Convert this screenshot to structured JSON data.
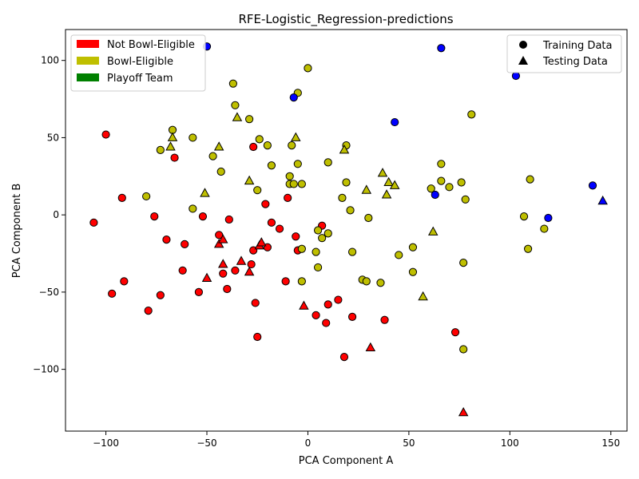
{
  "colors": {
    "not_bowl": "#ff0000",
    "bowl": "#bfbf00",
    "playoff": "#008000",
    "blue": "#0000ff",
    "edge": "#000000"
  },
  "chart_data": {
    "type": "scatter",
    "title": "RFE-Logistic_Regression-predictions",
    "xlabel": "PCA Component A",
    "ylabel": "PCA Component B",
    "xlim": [
      -120,
      158
    ],
    "ylim": [
      -140,
      120
    ],
    "xticks": [
      -100,
      -50,
      0,
      50,
      100,
      150
    ],
    "yticks": [
      -100,
      -50,
      0,
      50,
      100
    ],
    "grid": false,
    "class_legend": {
      "placement": "top-left",
      "entries": [
        {
          "label": "Not Bowl-Eligible",
          "color": "#ff0000"
        },
        {
          "label": "Bowl-Eligible",
          "color": "#bfbf00"
        },
        {
          "label": "Playoff Team",
          "color": "#008000"
        }
      ]
    },
    "marker_legend": {
      "placement": "top-right",
      "entries": [
        {
          "label": "Training Data",
          "marker": "circle"
        },
        {
          "label": "Testing Data",
          "marker": "triangle"
        }
      ]
    },
    "points": [
      {
        "x": -106,
        "y": -5,
        "c": "red",
        "m": "o"
      },
      {
        "x": -100,
        "y": 52,
        "c": "red",
        "m": "o"
      },
      {
        "x": -97,
        "y": -51,
        "c": "red",
        "m": "o"
      },
      {
        "x": -92,
        "y": 11,
        "c": "red",
        "m": "o"
      },
      {
        "x": -91,
        "y": -43,
        "c": "red",
        "m": "o"
      },
      {
        "x": -79,
        "y": -62,
        "c": "red",
        "m": "o"
      },
      {
        "x": -76,
        "y": -1,
        "c": "red",
        "m": "o"
      },
      {
        "x": -73,
        "y": -52,
        "c": "red",
        "m": "o"
      },
      {
        "x": -70,
        "y": -16,
        "c": "red",
        "m": "o"
      },
      {
        "x": -66,
        "y": 37,
        "c": "red",
        "m": "o"
      },
      {
        "x": -62,
        "y": -36,
        "c": "red",
        "m": "o"
      },
      {
        "x": -61,
        "y": -19,
        "c": "red",
        "m": "o"
      },
      {
        "x": -54,
        "y": -50,
        "c": "red",
        "m": "o"
      },
      {
        "x": -52,
        "y": -1,
        "c": "red",
        "m": "o"
      },
      {
        "x": -44,
        "y": -13,
        "c": "red",
        "m": "o"
      },
      {
        "x": -42,
        "y": -38,
        "c": "red",
        "m": "o"
      },
      {
        "x": -40,
        "y": -48,
        "c": "red",
        "m": "o"
      },
      {
        "x": -39,
        "y": -3,
        "c": "red",
        "m": "o"
      },
      {
        "x": -36,
        "y": -36,
        "c": "red",
        "m": "o"
      },
      {
        "x": -28,
        "y": -32,
        "c": "red",
        "m": "o"
      },
      {
        "x": -27,
        "y": -23,
        "c": "red",
        "m": "o"
      },
      {
        "x": -27,
        "y": 44,
        "c": "red",
        "m": "o"
      },
      {
        "x": -26,
        "y": -57,
        "c": "red",
        "m": "o"
      },
      {
        "x": -25,
        "y": -79,
        "c": "red",
        "m": "o"
      },
      {
        "x": -21,
        "y": 7,
        "c": "red",
        "m": "o"
      },
      {
        "x": -20,
        "y": -21,
        "c": "red",
        "m": "o"
      },
      {
        "x": -18,
        "y": -5,
        "c": "red",
        "m": "o"
      },
      {
        "x": -14,
        "y": -9,
        "c": "red",
        "m": "o"
      },
      {
        "x": -11,
        "y": -43,
        "c": "red",
        "m": "o"
      },
      {
        "x": -10,
        "y": 11,
        "c": "red",
        "m": "o"
      },
      {
        "x": -6,
        "y": -14,
        "c": "red",
        "m": "o"
      },
      {
        "x": -5,
        "y": -23,
        "c": "red",
        "m": "o"
      },
      {
        "x": 4,
        "y": -65,
        "c": "red",
        "m": "o"
      },
      {
        "x": 7,
        "y": -7,
        "c": "red",
        "m": "o"
      },
      {
        "x": 9,
        "y": -70,
        "c": "red",
        "m": "o"
      },
      {
        "x": 10,
        "y": -58,
        "c": "red",
        "m": "o"
      },
      {
        "x": 15,
        "y": -55,
        "c": "red",
        "m": "o"
      },
      {
        "x": 18,
        "y": -92,
        "c": "red",
        "m": "o"
      },
      {
        "x": 22,
        "y": -66,
        "c": "red",
        "m": "o"
      },
      {
        "x": 38,
        "y": -68,
        "c": "red",
        "m": "o"
      },
      {
        "x": 73,
        "y": -76,
        "c": "red",
        "m": "o"
      },
      {
        "x": -50,
        "y": -41,
        "c": "red",
        "m": "^"
      },
      {
        "x": -44,
        "y": -19,
        "c": "red",
        "m": "^"
      },
      {
        "x": -42,
        "y": -16,
        "c": "red",
        "m": "^"
      },
      {
        "x": -42,
        "y": -32,
        "c": "red",
        "m": "^"
      },
      {
        "x": -33,
        "y": -30,
        "c": "red",
        "m": "^"
      },
      {
        "x": -29,
        "y": -37,
        "c": "red",
        "m": "^"
      },
      {
        "x": -24,
        "y": -20,
        "c": "red",
        "m": "^"
      },
      {
        "x": -23,
        "y": -18,
        "c": "red",
        "m": "^"
      },
      {
        "x": -2,
        "y": -59,
        "c": "red",
        "m": "^"
      },
      {
        "x": 31,
        "y": -86,
        "c": "red",
        "m": "^"
      },
      {
        "x": 77,
        "y": -128,
        "c": "red",
        "m": "^"
      },
      {
        "x": -80,
        "y": 12,
        "c": "bowl",
        "m": "o"
      },
      {
        "x": -73,
        "y": 42,
        "c": "bowl",
        "m": "o"
      },
      {
        "x": -67,
        "y": 55,
        "c": "bowl",
        "m": "o"
      },
      {
        "x": -57,
        "y": 4,
        "c": "bowl",
        "m": "o"
      },
      {
        "x": -57,
        "y": 50,
        "c": "bowl",
        "m": "o"
      },
      {
        "x": -47,
        "y": 38,
        "c": "bowl",
        "m": "o"
      },
      {
        "x": -43,
        "y": 28,
        "c": "bowl",
        "m": "o"
      },
      {
        "x": -37,
        "y": 85,
        "c": "bowl",
        "m": "o"
      },
      {
        "x": -36,
        "y": 71,
        "c": "bowl",
        "m": "o"
      },
      {
        "x": -29,
        "y": 62,
        "c": "bowl",
        "m": "o"
      },
      {
        "x": -25,
        "y": 16,
        "c": "bowl",
        "m": "o"
      },
      {
        "x": -24,
        "y": 49,
        "c": "bowl",
        "m": "o"
      },
      {
        "x": -20,
        "y": 45,
        "c": "bowl",
        "m": "o"
      },
      {
        "x": -18,
        "y": 32,
        "c": "bowl",
        "m": "o"
      },
      {
        "x": -9,
        "y": 25,
        "c": "bowl",
        "m": "o"
      },
      {
        "x": -9,
        "y": 20,
        "c": "bowl",
        "m": "o"
      },
      {
        "x": -8,
        "y": 45,
        "c": "bowl",
        "m": "o"
      },
      {
        "x": -7,
        "y": 20,
        "c": "bowl",
        "m": "o"
      },
      {
        "x": -5,
        "y": 33,
        "c": "bowl",
        "m": "o"
      },
      {
        "x": -5,
        "y": 79,
        "c": "bowl",
        "m": "o"
      },
      {
        "x": -3,
        "y": 20,
        "c": "bowl",
        "m": "o"
      },
      {
        "x": -3,
        "y": -22,
        "c": "bowl",
        "m": "o"
      },
      {
        "x": -3,
        "y": -43,
        "c": "bowl",
        "m": "o"
      },
      {
        "x": 0,
        "y": 95,
        "c": "bowl",
        "m": "o"
      },
      {
        "x": 4,
        "y": -24,
        "c": "bowl",
        "m": "o"
      },
      {
        "x": 5,
        "y": -10,
        "c": "bowl",
        "m": "o"
      },
      {
        "x": 5,
        "y": -34,
        "c": "bowl",
        "m": "o"
      },
      {
        "x": 7,
        "y": -15,
        "c": "bowl",
        "m": "o"
      },
      {
        "x": 10,
        "y": -12,
        "c": "bowl",
        "m": "o"
      },
      {
        "x": 10,
        "y": 34,
        "c": "bowl",
        "m": "o"
      },
      {
        "x": 17,
        "y": 11,
        "c": "bowl",
        "m": "o"
      },
      {
        "x": 19,
        "y": 45,
        "c": "bowl",
        "m": "o"
      },
      {
        "x": 19,
        "y": 21,
        "c": "bowl",
        "m": "o"
      },
      {
        "x": 21,
        "y": 3,
        "c": "bowl",
        "m": "o"
      },
      {
        "x": 22,
        "y": -24,
        "c": "bowl",
        "m": "o"
      },
      {
        "x": 27,
        "y": -42,
        "c": "bowl",
        "m": "o"
      },
      {
        "x": 29,
        "y": -43,
        "c": "bowl",
        "m": "o"
      },
      {
        "x": 30,
        "y": -2,
        "c": "bowl",
        "m": "o"
      },
      {
        "x": 36,
        "y": -44,
        "c": "bowl",
        "m": "o"
      },
      {
        "x": 45,
        "y": -26,
        "c": "bowl",
        "m": "o"
      },
      {
        "x": 52,
        "y": -21,
        "c": "bowl",
        "m": "o"
      },
      {
        "x": 52,
        "y": -37,
        "c": "bowl",
        "m": "o"
      },
      {
        "x": 61,
        "y": 17,
        "c": "bowl",
        "m": "o"
      },
      {
        "x": 66,
        "y": 33,
        "c": "bowl",
        "m": "o"
      },
      {
        "x": 66,
        "y": 22,
        "c": "bowl",
        "m": "o"
      },
      {
        "x": 70,
        "y": 18,
        "c": "bowl",
        "m": "o"
      },
      {
        "x": 76,
        "y": 21,
        "c": "bowl",
        "m": "o"
      },
      {
        "x": 77,
        "y": -31,
        "c": "bowl",
        "m": "o"
      },
      {
        "x": 77,
        "y": -87,
        "c": "bowl",
        "m": "o"
      },
      {
        "x": 78,
        "y": 10,
        "c": "bowl",
        "m": "o"
      },
      {
        "x": 81,
        "y": 65,
        "c": "bowl",
        "m": "o"
      },
      {
        "x": 107,
        "y": -1,
        "c": "bowl",
        "m": "o"
      },
      {
        "x": 109,
        "y": -22,
        "c": "bowl",
        "m": "o"
      },
      {
        "x": 110,
        "y": 23,
        "c": "bowl",
        "m": "o"
      },
      {
        "x": 117,
        "y": -9,
        "c": "bowl",
        "m": "o"
      },
      {
        "x": -68,
        "y": 44,
        "c": "bowl",
        "m": "^"
      },
      {
        "x": -67,
        "y": 50,
        "c": "bowl",
        "m": "^"
      },
      {
        "x": -51,
        "y": 14,
        "c": "bowl",
        "m": "^"
      },
      {
        "x": -44,
        "y": 44,
        "c": "bowl",
        "m": "^"
      },
      {
        "x": -35,
        "y": 63,
        "c": "bowl",
        "m": "^"
      },
      {
        "x": -29,
        "y": 22,
        "c": "bowl",
        "m": "^"
      },
      {
        "x": -6,
        "y": 50,
        "c": "bowl",
        "m": "^"
      },
      {
        "x": 18,
        "y": 42,
        "c": "bowl",
        "m": "^"
      },
      {
        "x": 29,
        "y": 16,
        "c": "bowl",
        "m": "^"
      },
      {
        "x": 37,
        "y": 27,
        "c": "bowl",
        "m": "^"
      },
      {
        "x": 39,
        "y": 13,
        "c": "bowl",
        "m": "^"
      },
      {
        "x": 40,
        "y": 21,
        "c": "bowl",
        "m": "^"
      },
      {
        "x": 43,
        "y": 19,
        "c": "bowl",
        "m": "^"
      },
      {
        "x": 57,
        "y": -53,
        "c": "bowl",
        "m": "^"
      },
      {
        "x": 62,
        "y": -11,
        "c": "bowl",
        "m": "^"
      },
      {
        "x": -50,
        "y": 109,
        "c": "blue",
        "m": "o"
      },
      {
        "x": -7,
        "y": 76,
        "c": "blue",
        "m": "o"
      },
      {
        "x": 43,
        "y": 60,
        "c": "blue",
        "m": "o"
      },
      {
        "x": 63,
        "y": 13,
        "c": "blue",
        "m": "o"
      },
      {
        "x": 66,
        "y": 108,
        "c": "blue",
        "m": "o"
      },
      {
        "x": 103,
        "y": 90,
        "c": "blue",
        "m": "o"
      },
      {
        "x": 119,
        "y": -2,
        "c": "blue",
        "m": "o"
      },
      {
        "x": 141,
        "y": 19,
        "c": "blue",
        "m": "o"
      },
      {
        "x": 146,
        "y": 9,
        "c": "blue",
        "m": "^"
      }
    ]
  }
}
